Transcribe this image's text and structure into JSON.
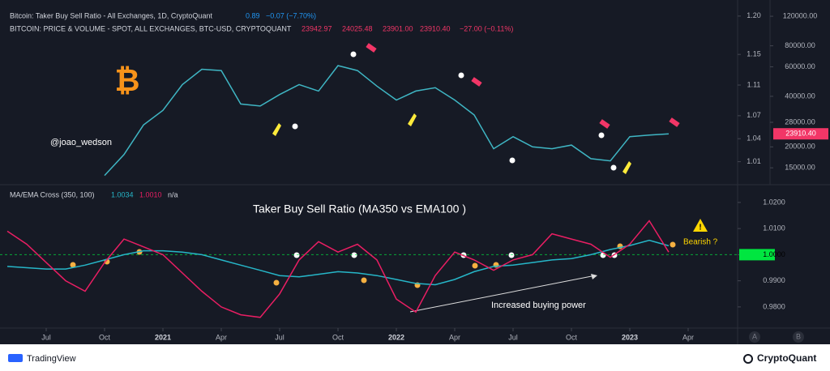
{
  "chart_data": [
    {
      "type": "line",
      "title": "Bitcoin: Taker Buy Sell Ratio - All Exchanges, 1D, CryptoQuant",
      "header_values": [
        "0.89",
        "−0.07 (−7.70%)"
      ],
      "subtitle": "BITCOIN: PRICE & VOLUME - SPOT, ALL EXCHANGES, BTC-USD, CRYPTOQUANT",
      "ohlc": [
        "23942.97",
        "24025.48",
        "23901.00",
        "23910.40",
        "−27.00 (−0.11%)"
      ],
      "annotation": "@joao_wedson",
      "x": [
        "2020-10",
        "2020-11",
        "2020-12",
        "2021-01",
        "2021-02",
        "2021-03",
        "2021-04",
        "2021-05",
        "2021-06",
        "2021-07",
        "2021-08",
        "2021-09",
        "2021-10",
        "2021-11",
        "2021-12",
        "2022-01",
        "2022-02",
        "2022-03",
        "2022-04",
        "2022-05",
        "2022-06",
        "2022-07",
        "2022-08",
        "2022-09",
        "2022-10",
        "2022-11",
        "2022-12",
        "2023-01",
        "2023-02",
        "2023-03"
      ],
      "series": [
        {
          "color": "#3fb6c4",
          "axis": "y2",
          "values": [
            13500,
            18000,
            27000,
            33000,
            47000,
            58000,
            57000,
            36000,
            35000,
            41000,
            47000,
            43000,
            61000,
            57000,
            46000,
            38000,
            43000,
            45000,
            38000,
            31000,
            19500,
            23000,
            20000,
            19500,
            20500,
            17000,
            16500,
            23000,
            23500,
            23910.4
          ]
        }
      ],
      "ylim": [
        0.98,
        1.221
      ],
      "yticks": [
        {
          "value": 1.2,
          "label": "1.20"
        },
        1.15,
        1.11,
        1.07,
        1.04,
        1.01
      ],
      "y2lim": [
        11900,
        150000
      ],
      "y2scale": "log",
      "y2ticks": [
        {
          "value": 120000,
          "label": "120000.00"
        },
        {
          "value": 80000,
          "label": "80000.00"
        },
        {
          "value": 60000,
          "label": "60000.00"
        },
        {
          "value": 40000,
          "label": "40000.00"
        },
        {
          "value": 28000,
          "label": "28000.00"
        },
        {
          "value": 20000,
          "label": "20000.00"
        },
        {
          "value": 15000,
          "label": "15000.00"
        }
      ],
      "last_value": {
        "value": 23910.4,
        "label": "23910.40"
      },
      "last_value_color": "#f23667"
    },
    {
      "type": "line",
      "title": "MA/EMA Cross (350, 100)",
      "header_values": [
        "1.0034",
        "1.0010",
        "n/a"
      ],
      "annotations": [
        "Taker Buy Sell Ratio (MA350 vs EMA100 )",
        "Increased buying power",
        "Bearish ?"
      ],
      "x": [
        "2020-05",
        "2020-06",
        "2020-07",
        "2020-08",
        "2020-09",
        "2020-10",
        "2020-11",
        "2020-12",
        "2021-01",
        "2021-02",
        "2021-03",
        "2021-04",
        "2021-05",
        "2021-06",
        "2021-07",
        "2021-08",
        "2021-09",
        "2021-10",
        "2021-11",
        "2021-12",
        "2022-01",
        "2022-02",
        "2022-03",
        "2022-04",
        "2022-05",
        "2022-06",
        "2022-07",
        "2022-08",
        "2022-09",
        "2022-10",
        "2022-11",
        "2022-12",
        "2023-01",
        "2023-02",
        "2023-03"
      ],
      "series": [
        {
          "color": "#26b6c8",
          "values": [
            0.9955,
            0.995,
            0.9945,
            0.9945,
            0.996,
            0.998,
            1.0,
            1.0015,
            1.0015,
            1.001,
            1.0,
            0.998,
            0.996,
            0.994,
            0.992,
            0.9915,
            0.9925,
            0.9935,
            0.993,
            0.992,
            0.9905,
            0.989,
            0.9885,
            0.9905,
            0.9935,
            0.9955,
            0.996,
            0.997,
            0.998,
            0.9985,
            1.0,
            1.002,
            1.0035,
            1.0055,
            1.0034
          ]
        },
        {
          "color": "#e91e63",
          "values": [
            1.009,
            1.004,
            0.997,
            0.99,
            0.986,
            0.997,
            1.006,
            1.003,
            1.0,
            0.993,
            0.986,
            0.98,
            0.977,
            0.976,
            0.985,
            0.998,
            1.005,
            1.001,
            1.004,
            0.998,
            0.983,
            0.978,
            0.992,
            1.001,
            0.998,
            0.994,
            0.998,
            1.0,
            1.008,
            1.006,
            1.004,
            0.999,
            1.004,
            1.013,
            1.001
          ]
        }
      ],
      "ylim": [
        0.9719,
        1.0268
      ],
      "yticks": [
        {
          "value": 1.02,
          "label": "1.0200"
        },
        {
          "value": 1.01,
          "label": "1.0100"
        },
        {
          "value": 1,
          "label": "1.0000"
        },
        {
          "value": 0.99,
          "label": "0.9900"
        },
        {
          "value": 0.98,
          "label": "0.9800"
        }
      ],
      "baseline": 1,
      "baseline_color": "#00e640",
      "xlim": [
        "2020-05",
        "2023-06"
      ],
      "xticks": [
        {
          "value": "2020-07",
          "label": "Jul"
        },
        {
          "value": "2020-10",
          "label": "Oct"
        },
        {
          "value": "2021-01",
          "label": "2021"
        },
        {
          "value": "2021-04",
          "label": "Apr"
        },
        {
          "value": "2021-07",
          "label": "Jul"
        },
        {
          "value": "2021-10",
          "label": "Oct"
        },
        {
          "value": "2022-01",
          "label": "2022"
        },
        {
          "value": "2022-04",
          "label": "Apr"
        },
        {
          "value": "2022-07",
          "label": "Jul"
        },
        {
          "value": "2022-10",
          "label": "Oct"
        },
        {
          "value": "2023-01",
          "label": "2023"
        },
        {
          "value": "2023-04",
          "label": "Apr"
        }
      ]
    }
  ],
  "axis_buttons": [
    "A",
    "B"
  ],
  "footer": {
    "left": "TradingView",
    "right": "CryptoQuant"
  }
}
